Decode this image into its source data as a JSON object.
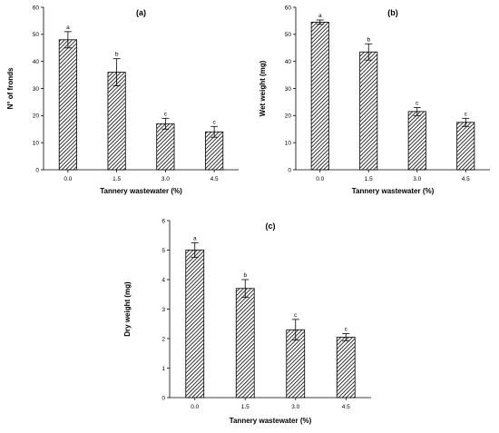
{
  "chart_data": [
    {
      "type": "bar",
      "title": "(a)",
      "xlabel": "Tannery wastewater (%)",
      "ylabel": "N° of fronds",
      "categories": [
        "0.0",
        "1.5",
        "3.0",
        "4.5"
      ],
      "values": [
        48,
        36,
        17,
        14
      ],
      "errors": [
        3,
        5,
        2,
        2
      ],
      "significance": [
        "a",
        "b",
        "c",
        "c"
      ],
      "ylim": [
        0,
        60
      ],
      "yticks": [
        0,
        10,
        20,
        30,
        40,
        50,
        60
      ],
      "bar_fill": "diagonal-hatch",
      "grid": false
    },
    {
      "type": "bar",
      "title": "(b)",
      "xlabel": "Tannery wastewater (%)",
      "ylabel": "Wet weight (mg)",
      "categories": [
        "0.0",
        "1.5",
        "3.0",
        "4.5"
      ],
      "values": [
        54.5,
        43.5,
        21.5,
        17.5
      ],
      "errors": [
        0.8,
        3,
        1.5,
        1.5
      ],
      "significance": [
        "a",
        "b",
        "c",
        "c"
      ],
      "ylim": [
        0,
        60
      ],
      "yticks": [
        0,
        10,
        20,
        30,
        40,
        50,
        60
      ],
      "bar_fill": "diagonal-hatch",
      "grid": false
    },
    {
      "type": "bar",
      "title": "(c)",
      "xlabel": "Tannery wastewater (%)",
      "ylabel": "Dry weight (mg)",
      "categories": [
        "0.0",
        "1.5",
        "3.0",
        "4.5"
      ],
      "values": [
        5.0,
        3.7,
        2.3,
        2.05
      ],
      "errors": [
        0.25,
        0.3,
        0.35,
        0.12
      ],
      "significance": [
        "a",
        "b",
        "c",
        "c"
      ],
      "ylim": [
        0,
        6
      ],
      "yticks": [
        0,
        1,
        2,
        3,
        4,
        5,
        6
      ],
      "bar_fill": "diagonal-hatch",
      "grid": false
    }
  ]
}
